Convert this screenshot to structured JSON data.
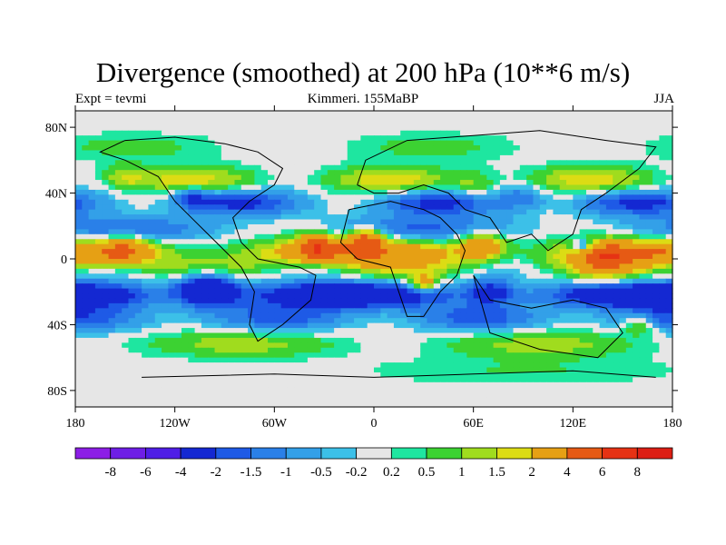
{
  "chart_data": {
    "type": "heatmap",
    "title": "Divergence (smoothed) at 200 hPa (10**6 m/s)",
    "subtitle_left": "Expt = tevmi",
    "subtitle_center": "Kimmeri. 155MaBP",
    "subtitle_right": "JJA",
    "x_ticks": [
      "180",
      "120W",
      "60W",
      "0",
      "60E",
      "120E",
      "180"
    ],
    "x_tick_values": [
      -180,
      -120,
      -60,
      0,
      60,
      120,
      180
    ],
    "y_ticks": [
      "80N",
      "40N",
      "0",
      "40S",
      "80S"
    ],
    "y_tick_values": [
      80,
      40,
      0,
      -40,
      -80
    ],
    "xlim": [
      -180,
      180
    ],
    "ylim": [
      -90,
      90
    ],
    "colorbar": {
      "labels": [
        "-8",
        "-6",
        "-4",
        "-2",
        "-1.5",
        "-1",
        "-0.5",
        "-0.2",
        "0.2",
        "0.5",
        "1",
        "1.5",
        "2",
        "4",
        "6",
        "8"
      ],
      "colors": [
        "#8c1ee6",
        "#6e1ee6",
        "#4f1ee6",
        "#1428d2",
        "#1e5ae6",
        "#2a80e8",
        "#33a0e8",
        "#3cc0e8",
        "#e6e6e6",
        "#1ee6a0",
        "#3cd232",
        "#a0dc1e",
        "#dcdc14",
        "#e6a014",
        "#e65a14",
        "#e63214",
        "#dc1e14"
      ]
    },
    "bands": [
      {
        "lat": 68,
        "value": 0.3,
        "amp": 0.4,
        "waves": 2,
        "phase": 20
      },
      {
        "lat": 48,
        "value": 1.0,
        "amp": 0.9,
        "waves": 3,
        "phase": 60
      },
      {
        "lat": 34,
        "value": -1.2,
        "amp": 1.1,
        "waves": 3,
        "phase": 150
      },
      {
        "lat": 18,
        "value": -0.8,
        "amp": 0.8,
        "waves": 2,
        "phase": 210
      },
      {
        "lat": 4,
        "value": 2.2,
        "amp": 1.8,
        "waves": 2,
        "phase": 110
      },
      {
        "lat": -6,
        "value": 0.6,
        "amp": 0.9,
        "waves": 3,
        "phase": 30
      },
      {
        "lat": -22,
        "value": -2.2,
        "amp": 1.6,
        "waves": 2,
        "phase": 300
      },
      {
        "lat": -36,
        "value": -1.0,
        "amp": 0.8,
        "waves": 3,
        "phase": 80
      },
      {
        "lat": -52,
        "value": 0.7,
        "amp": 0.6,
        "waves": 2,
        "phase": 250
      },
      {
        "lat": -68,
        "value": 0.2,
        "amp": 0.3,
        "waves": 1,
        "phase": 0
      }
    ],
    "features": [
      {
        "lon": -35,
        "lat": 8,
        "value": 3.5,
        "size": 12
      },
      {
        "lon": -5,
        "lat": 12,
        "value": 4.5,
        "size": 10
      },
      {
        "lon": 65,
        "lat": 8,
        "value": 3.0,
        "size": 14
      },
      {
        "lon": 140,
        "lat": 0,
        "value": 2.8,
        "size": 16
      },
      {
        "lon": -150,
        "lat": 5,
        "value": 2.5,
        "size": 14
      },
      {
        "lon": 125,
        "lat": 8,
        "value": -3.0,
        "size": 6
      },
      {
        "lon": -100,
        "lat": -18,
        "value": -3.5,
        "size": 18
      },
      {
        "lon": 70,
        "lat": -20,
        "value": -2.0,
        "size": 14
      },
      {
        "lon": -110,
        "lat": 38,
        "value": -1.6,
        "size": 10
      },
      {
        "lon": 90,
        "lat": 38,
        "value": -1.2,
        "size": 14
      },
      {
        "lon": 30,
        "lat": -15,
        "value": 3.0,
        "size": 8
      },
      {
        "lon": 160,
        "lat": -40,
        "value": 1.6,
        "size": 10
      },
      {
        "lon": -150,
        "lat": 50,
        "value": 1.2,
        "size": 12
      },
      {
        "lon": 60,
        "lat": 45,
        "value": 1.0,
        "size": 14
      }
    ],
    "coastlines": [
      [
        [
          -150,
          72
        ],
        [
          -120,
          74
        ],
        [
          -90,
          70
        ],
        [
          -70,
          65
        ],
        [
          -55,
          55
        ],
        [
          -60,
          45
        ],
        [
          -75,
          35
        ],
        [
          -85,
          25
        ],
        [
          -80,
          10
        ],
        [
          -70,
          0
        ],
        [
          -45,
          -5
        ],
        [
          -35,
          -10
        ],
        [
          -38,
          -25
        ],
        [
          -55,
          -40
        ],
        [
          -70,
          -50
        ],
        [
          -75,
          -40
        ],
        [
          -72,
          -20
        ],
        [
          -80,
          -5
        ],
        [
          -95,
          10
        ],
        [
          -110,
          25
        ],
        [
          -120,
          35
        ],
        [
          -130,
          50
        ],
        [
          -150,
          60
        ],
        [
          -165,
          65
        ],
        [
          -150,
          72
        ]
      ],
      [
        [
          -15,
          30
        ],
        [
          -20,
          10
        ],
        [
          -10,
          0
        ],
        [
          10,
          -5
        ],
        [
          15,
          -20
        ],
        [
          20,
          -35
        ],
        [
          30,
          -35
        ],
        [
          40,
          -20
        ],
        [
          50,
          -10
        ],
        [
          55,
          5
        ],
        [
          50,
          15
        ],
        [
          40,
          25
        ],
        [
          30,
          30
        ],
        [
          10,
          35
        ],
        [
          -15,
          30
        ]
      ],
      [
        [
          -10,
          45
        ],
        [
          -5,
          60
        ],
        [
          20,
          72
        ],
        [
          60,
          75
        ],
        [
          100,
          78
        ],
        [
          140,
          72
        ],
        [
          170,
          68
        ],
        [
          160,
          55
        ],
        [
          140,
          40
        ],
        [
          125,
          30
        ],
        [
          120,
          15
        ],
        [
          105,
          5
        ],
        [
          95,
          15
        ],
        [
          80,
          10
        ],
        [
          70,
          25
        ],
        [
          55,
          30
        ],
        [
          45,
          40
        ],
        [
          30,
          45
        ],
        [
          15,
          40
        ],
        [
          0,
          40
        ],
        [
          -10,
          45
        ]
      ],
      [
        [
          60,
          -10
        ],
        [
          70,
          -25
        ],
        [
          95,
          -30
        ],
        [
          120,
          -25
        ],
        [
          140,
          -30
        ],
        [
          150,
          -45
        ],
        [
          135,
          -60
        ],
        [
          100,
          -55
        ],
        [
          70,
          -45
        ],
        [
          60,
          -10
        ]
      ],
      [
        [
          -140,
          -72
        ],
        [
          -60,
          -70
        ],
        [
          0,
          -72
        ],
        [
          60,
          -70
        ],
        [
          120,
          -68
        ],
        [
          170,
          -72
        ]
      ]
    ]
  }
}
